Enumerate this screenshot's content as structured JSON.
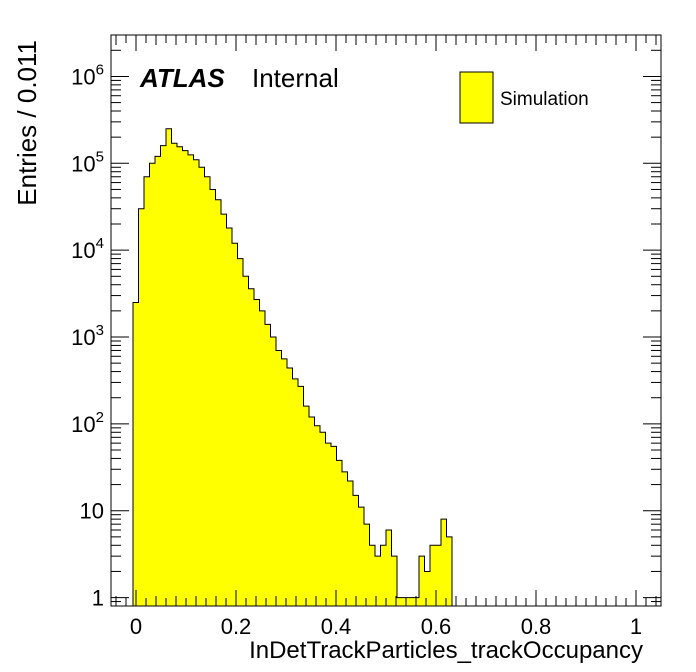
{
  "chart_data": {
    "type": "bar",
    "title": "",
    "xlabel": "InDetTrackParticles_trackOccupancy",
    "ylabel": "Entries / 0.011",
    "xlim": [
      -0.05,
      1.05
    ],
    "ylim": [
      0.8,
      3000000
    ],
    "yscale": "log",
    "grid": false,
    "legend_position": "top-right",
    "x_ticks": [
      {
        "value": 0,
        "label": "0"
      },
      {
        "value": 0.2,
        "label": "0.2"
      },
      {
        "value": 0.4,
        "label": "0.4"
      },
      {
        "value": 0.6,
        "label": "0.6"
      },
      {
        "value": 0.8,
        "label": "0.8"
      },
      {
        "value": 1,
        "label": "1"
      }
    ],
    "y_ticks": [
      {
        "value": 1,
        "base": "1",
        "exp": ""
      },
      {
        "value": 10,
        "base": "10",
        "exp": ""
      },
      {
        "value": 100,
        "base": "10",
        "exp": "2"
      },
      {
        "value": 1000,
        "base": "10",
        "exp": "3"
      },
      {
        "value": 10000,
        "base": "10",
        "exp": "4"
      },
      {
        "value": 100000,
        "base": "10",
        "exp": "5"
      },
      {
        "value": 1000000,
        "base": "10",
        "exp": "6"
      }
    ],
    "annotation": {
      "experiment": "ATLAS",
      "status": "Internal"
    },
    "bin_start": -0.05,
    "bin_width": 0.011,
    "series": [
      {
        "name": "Simulation",
        "color": "#ffff00",
        "values": [
          0,
          0,
          0,
          0,
          2500,
          30000,
          70000,
          100000,
          120000,
          160000,
          250000,
          170000,
          155000,
          140000,
          125000,
          110000,
          90000,
          70000,
          50000,
          38000,
          26000,
          18000,
          12000,
          8000,
          5000,
          3600,
          2700,
          2000,
          1400,
          1000,
          700,
          560,
          440,
          330,
          270,
          160,
          120,
          95,
          80,
          60,
          55,
          38,
          28,
          22,
          15,
          11,
          7,
          4,
          3,
          4,
          6,
          3,
          1,
          1,
          1,
          1,
          3,
          2,
          4,
          4,
          8,
          5,
          0,
          0,
          0,
          0,
          0,
          0,
          0,
          0,
          0,
          0,
          0,
          0,
          0,
          0,
          0,
          0,
          0,
          0,
          0,
          0,
          0,
          0,
          0,
          0,
          0,
          0,
          0,
          0,
          0,
          0,
          0,
          0,
          0,
          0,
          0,
          0,
          0,
          0
        ]
      }
    ]
  }
}
